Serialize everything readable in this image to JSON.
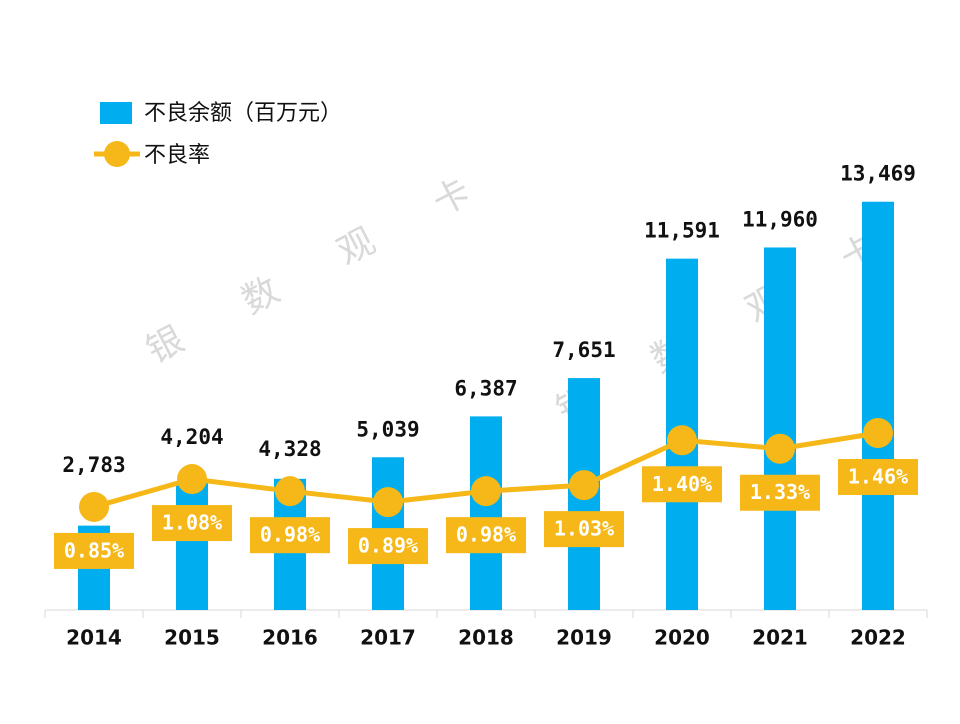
{
  "chart_data": {
    "type": "bar-line",
    "categories": [
      "2014",
      "2015",
      "2016",
      "2017",
      "2018",
      "2019",
      "2020",
      "2021",
      "2022"
    ],
    "series": [
      {
        "name": "不良余额（百万元）",
        "type": "bar",
        "color": "#00aeef",
        "values": [
          2783,
          4204,
          4328,
          5039,
          6387,
          7651,
          11591,
          11960,
          13469
        ],
        "value_labels": [
          "2,783",
          "4,204",
          "4,328",
          "5,039",
          "6,387",
          "7,651",
          "11,591",
          "11,960",
          "13,469"
        ]
      },
      {
        "name": "不良率",
        "type": "line",
        "axis": "y2",
        "color": "#f6b818",
        "values": [
          0.85,
          1.08,
          0.98,
          0.89,
          0.98,
          1.03,
          1.4,
          1.33,
          1.46
        ],
        "value_labels": [
          "0.85%",
          "1.08%",
          "0.98%",
          "0.89%",
          "0.98%",
          "1.03%",
          "1.40%",
          "1.33%",
          "1.46%"
        ]
      }
    ],
    "ylim": [
      0,
      16000
    ],
    "y2lim": [
      0,
      4
    ],
    "legend": "top-left",
    "watermark": [
      "银 数 观 卡",
      "银 数 观 卡"
    ]
  }
}
